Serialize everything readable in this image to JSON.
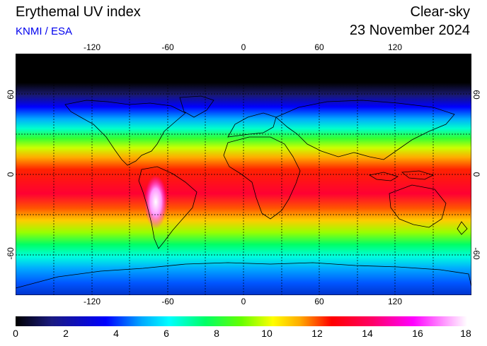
{
  "header": {
    "title": "Erythemal UV index",
    "credit": "KNMI / ESA",
    "subtitle": "Clear-sky",
    "date": "23 November 2024"
  },
  "map": {
    "lon_labels": [
      "-120",
      "-60",
      "0",
      "60",
      "120"
    ],
    "lat_labels": [
      "60",
      "0",
      "-60"
    ],
    "lon_range": [
      -180,
      180
    ],
    "lat_range": [
      -90,
      90
    ],
    "grid": true,
    "grid_style": "dotted"
  },
  "colorbar": {
    "labels": [
      "0",
      "2",
      "4",
      "6",
      "8",
      "10",
      "12",
      "14",
      "16",
      "18"
    ],
    "range": [
      0,
      18
    ]
  },
  "colors": {
    "credit": "#0000ee",
    "scale": [
      "#000000",
      "#1a1a80",
      "#0000ff",
      "#00aaff",
      "#00ffff",
      "#00ff66",
      "#66ff00",
      "#ffff00",
      "#ffaa00",
      "#ff0000",
      "#ff0066",
      "#ff00ff",
      "#ff99ff",
      "#ffffff"
    ]
  }
}
